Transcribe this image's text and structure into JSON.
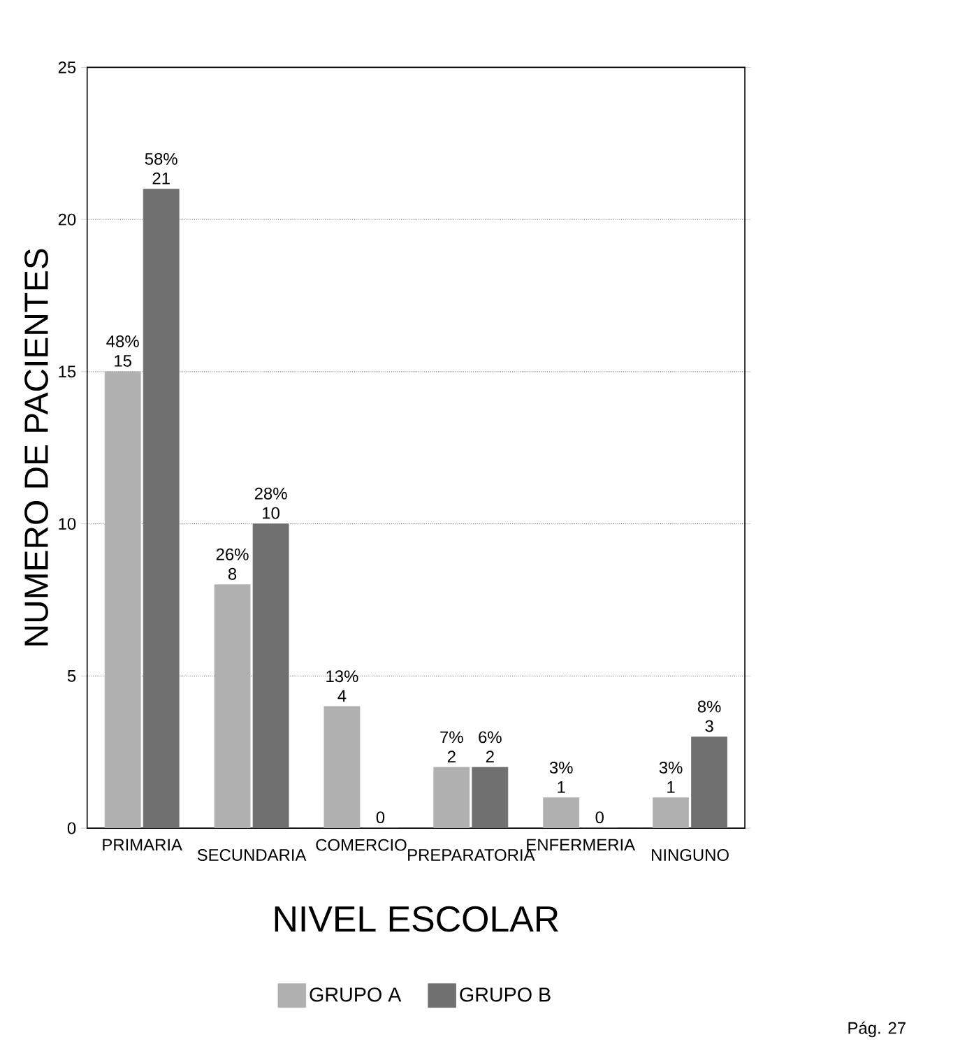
{
  "chart_data": {
    "type": "bar",
    "xlabel": "NIVEL ESCOLAR",
    "ylabel": "NUMERO DE PACIENTES",
    "categories": [
      "PRIMARIA",
      "SECUNDARIA",
      "COMERCIO",
      "PREPARATORIA",
      "ENFERMERIA",
      "NINGUNO"
    ],
    "series": [
      {
        "name": "GRUPO A",
        "color": "#b0b0b0",
        "values": [
          15,
          8,
          4,
          2,
          1,
          1
        ],
        "value_labels": [
          "48% 15",
          "26% 8",
          "13% 4",
          "7% 2",
          "3% 1",
          "3% 1"
        ]
      },
      {
        "name": "GRUPO B",
        "color": "#707070",
        "values": [
          21,
          10,
          0,
          2,
          0,
          3
        ],
        "value_labels": [
          "58% 21",
          "28% 10",
          "0",
          "6% 2",
          "0",
          "8% 3"
        ]
      }
    ],
    "ylim": [
      0,
      25
    ],
    "yticks": [
      0,
      5,
      10,
      15,
      20,
      25
    ],
    "grid": "y",
    "legend": "bottom",
    "annotations": [
      "Pág. 27"
    ]
  }
}
